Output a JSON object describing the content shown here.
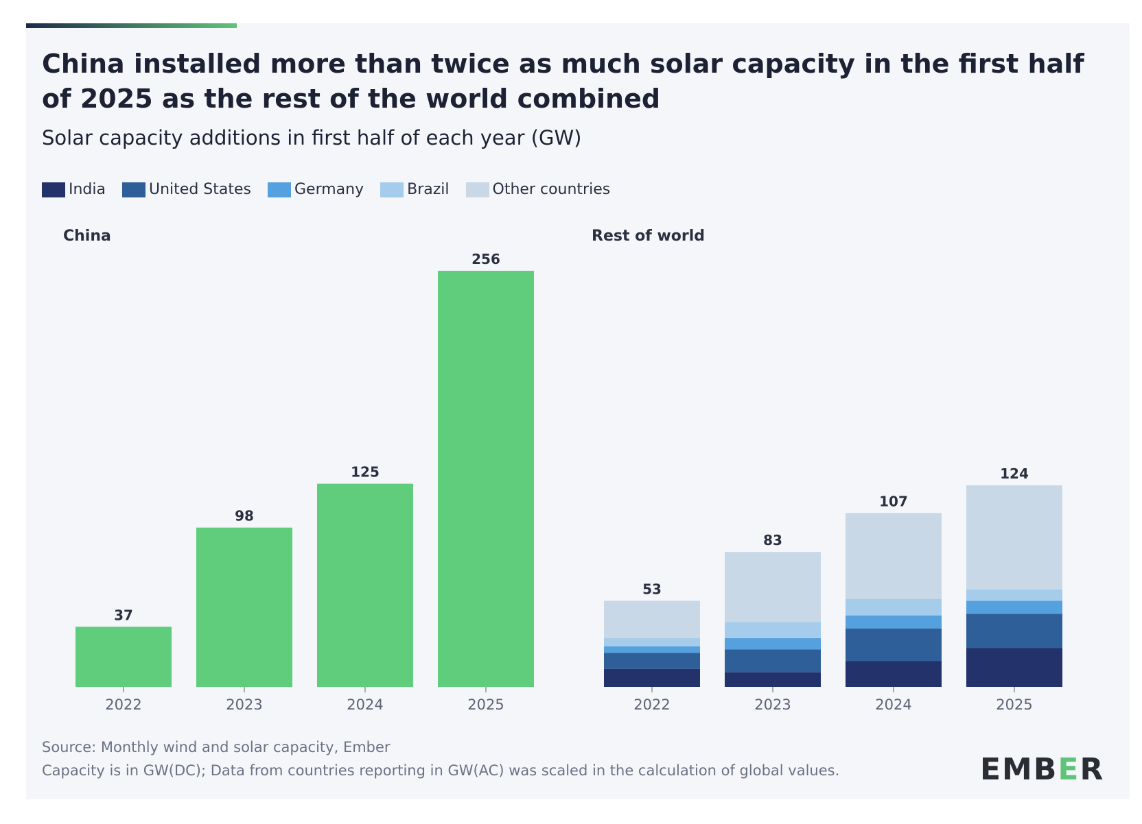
{
  "title": "China installed more than twice as much solar capacity in the first half of 2025 as the rest of the world combined",
  "subtitle": "Solar capacity additions in first half of each year (GW)",
  "legend": [
    {
      "label": "India",
      "color": "#23326b"
    },
    {
      "label": "United States",
      "color": "#2f5f98"
    },
    {
      "label": "Germany",
      "color": "#55a0de"
    },
    {
      "label": "Brazil",
      "color": "#a6ccec"
    },
    {
      "label": "Other countries",
      "color": "#c8d8e6"
    }
  ],
  "footer": {
    "source": "Source: Monthly wind and solar capacity, Ember",
    "note": "Capacity is in GW(DC); Data from countries reporting in GW(AC) was scaled in the calculation of global values."
  },
  "logo": {
    "text_main": "EMB",
    "text_e": "E",
    "text_end": "R"
  },
  "chart_data": [
    {
      "type": "bar",
      "panel": "China",
      "title": "China",
      "categories": [
        "2022",
        "2023",
        "2024",
        "2025"
      ],
      "values": [
        37,
        98,
        125,
        256
      ],
      "color": "#5fcd7c",
      "ylim": [
        0,
        256
      ]
    },
    {
      "type": "bar",
      "stacked": true,
      "panel": "Rest of world",
      "title": "Rest of world",
      "categories": [
        "2022",
        "2023",
        "2024",
        "2025"
      ],
      "totals": [
        53,
        83,
        107,
        124
      ],
      "series": [
        {
          "name": "India",
          "color": "#23326b",
          "values": [
            11,
            9,
            16,
            24
          ]
        },
        {
          "name": "United States",
          "color": "#2f5f98",
          "values": [
            10,
            14,
            20,
            21
          ]
        },
        {
          "name": "Germany",
          "color": "#55a0de",
          "values": [
            4,
            7,
            8,
            8
          ]
        },
        {
          "name": "Brazil",
          "color": "#a6ccec",
          "values": [
            5,
            10,
            10,
            7
          ]
        },
        {
          "name": "Other countries",
          "color": "#c8d8e6",
          "values": [
            23,
            43,
            53,
            64
          ]
        }
      ],
      "ylim": [
        0,
        256
      ]
    }
  ]
}
